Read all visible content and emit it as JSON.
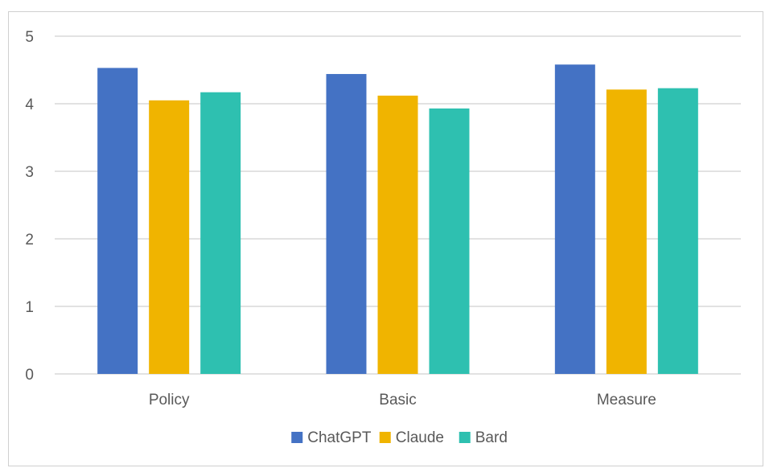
{
  "chart_data": {
    "type": "bar",
    "categories": [
      "Policy",
      "Basic",
      "Measure"
    ],
    "series": [
      {
        "name": "ChatGPT",
        "color": "#4472C4",
        "values": [
          4.53,
          4.44,
          4.58
        ]
      },
      {
        "name": "Claude",
        "color": "#F0B400",
        "values": [
          4.05,
          4.12,
          4.21
        ]
      },
      {
        "name": "Bard",
        "color": "#2EC0B0",
        "values": [
          4.17,
          3.93,
          4.23
        ]
      }
    ],
    "ylim": [
      0,
      5
    ],
    "yticks": [
      0,
      1,
      2,
      3,
      4,
      5
    ],
    "grid": true,
    "legend_position": "bottom"
  }
}
